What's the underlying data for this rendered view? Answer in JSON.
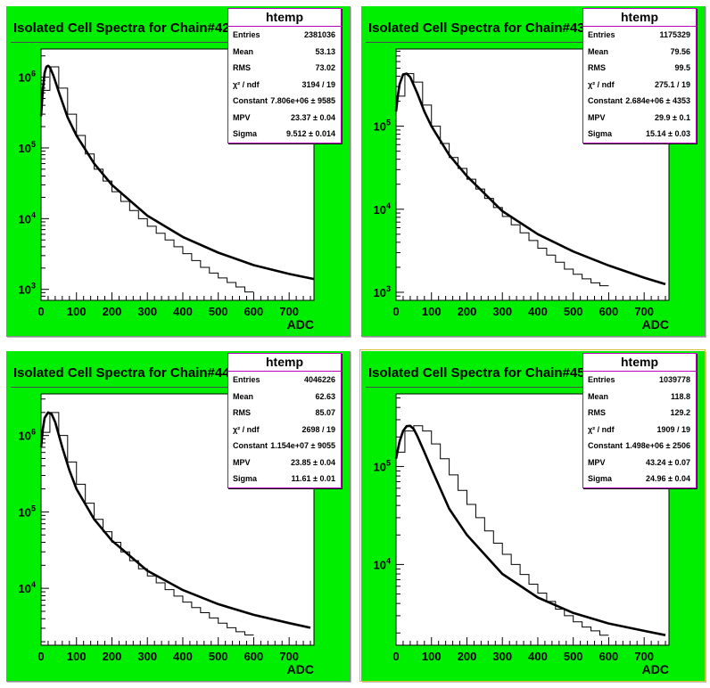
{
  "colors": {
    "pad_fill": "#00ee00",
    "frame_fill": "#ffffff",
    "line": "#000000",
    "stats_border": "#c000c0"
  },
  "panels": [
    {
      "title": "Isolated Cell Spectra for Chain#42",
      "stats": {
        "name": "htemp",
        "rows": [
          {
            "label": "Entries",
            "value": "2381036"
          },
          {
            "label": "Mean",
            "value": "53.13"
          },
          {
            "label": "RMS",
            "value": "73.02"
          },
          {
            "label": "χ² / ndf",
            "value": "3194 / 19"
          },
          {
            "label": "Constant",
            "value": "7.806e+06 ± 9585"
          },
          {
            "label": "MPV",
            "value": "23.37 ± 0.04"
          },
          {
            "label": "Sigma",
            "value": "9.512 ± 0.014"
          }
        ]
      }
    },
    {
      "title": "Isolated Cell Spectra for Chain#43",
      "stats": {
        "name": "htemp",
        "rows": [
          {
            "label": "Entries",
            "value": "1175329"
          },
          {
            "label": "Mean",
            "value": "79.56"
          },
          {
            "label": "RMS",
            "value": "99.5"
          },
          {
            "label": "χ² / ndf",
            "value": "275.1 / 19"
          },
          {
            "label": "Constant",
            "value": "2.684e+06 ± 4353"
          },
          {
            "label": "MPV",
            "value": "29.9 ± 0.1"
          },
          {
            "label": "Sigma",
            "value": "15.14 ± 0.03"
          }
        ]
      }
    },
    {
      "title": "Isolated Cell Spectra for Chain#44",
      "stats": {
        "name": "htemp",
        "rows": [
          {
            "label": "Entries",
            "value": "4046226"
          },
          {
            "label": "Mean",
            "value": "62.63"
          },
          {
            "label": "RMS",
            "value": "85.07"
          },
          {
            "label": "χ² / ndf",
            "value": "2698 / 19"
          },
          {
            "label": "Constant",
            "value": "1.154e+07 ± 9055"
          },
          {
            "label": "MPV",
            "value": "23.85 ± 0.04"
          },
          {
            "label": "Sigma",
            "value": "11.61 ± 0.01"
          }
        ]
      }
    },
    {
      "title": "Isolated Cell Spectra for Chain#45",
      "stats": {
        "name": "htemp",
        "rows": [
          {
            "label": "Entries",
            "value": "1039778"
          },
          {
            "label": "Mean",
            "value": "118.8"
          },
          {
            "label": "RMS",
            "value": "129.2"
          },
          {
            "label": "χ² / ndf",
            "value": "1909 / 19"
          },
          {
            "label": "Constant",
            "value": "1.498e+06 ± 2506"
          },
          {
            "label": "MPV",
            "value": "43.24 ± 0.07"
          },
          {
            "label": "Sigma",
            "value": "24.96 ± 0.04"
          }
        ]
      }
    }
  ],
  "chart_data": [
    {
      "type": "bar",
      "title": "Isolated Cell Spectra for Chain#42",
      "xlabel": "ADC",
      "ylabel": "",
      "xlim": [
        0,
        770
      ],
      "ylim": [
        700,
        2500000
      ],
      "yscale": "log",
      "xticks": [
        "0",
        "100",
        "200",
        "300",
        "400",
        "500",
        "600",
        "700"
      ],
      "yticks": [
        "10^3",
        "10^4",
        "10^5",
        "10^6"
      ],
      "bin_width": 25,
      "series": [
        {
          "values": [
            650000,
            1400000,
            700000,
            300000,
            150000,
            82000,
            50000,
            34000,
            24000,
            17500,
            13000,
            10000,
            7800,
            6200,
            5000,
            4000,
            3200,
            2550,
            2050,
            1700,
            1450,
            1250,
            1080,
            920
          ]
        },
        {
          "fit_x": [
            0,
            5,
            10,
            15,
            20,
            25,
            35,
            50,
            75,
            100,
            150,
            200,
            300,
            400,
            500,
            600,
            700,
            770
          ],
          "fit_y": [
            280000,
            650000,
            1150000,
            1400000,
            1450000,
            1380000,
            1050000,
            620000,
            270000,
            150000,
            60000,
            30000,
            11000,
            5500,
            3300,
            2200,
            1650,
            1400
          ]
        }
      ]
    },
    {
      "type": "bar",
      "title": "Isolated Cell Spectra for Chain#43",
      "xlabel": "ADC",
      "ylabel": "",
      "xlim": [
        0,
        770
      ],
      "ylim": [
        800,
        850000
      ],
      "yscale": "log",
      "xticks": [
        "0",
        "100",
        "200",
        "300",
        "400",
        "500",
        "600",
        "700"
      ],
      "yticks": [
        "10^3",
        "10^4",
        "10^5"
      ],
      "bin_width": 25,
      "series": [
        {
          "values": [
            230000,
            430000,
            340000,
            180000,
            100000,
            62000,
            42000,
            31000,
            23000,
            17500,
            13500,
            10500,
            8200,
            6500,
            5200,
            4200,
            3400,
            2800,
            2300,
            1900,
            1650,
            1450,
            1300,
            1200
          ]
        },
        {
          "fit_x": [
            0,
            5,
            10,
            20,
            30,
            40,
            60,
            80,
            100,
            150,
            200,
            300,
            400,
            500,
            600,
            700,
            760
          ],
          "fit_y": [
            150000,
            230000,
            320000,
            420000,
            430000,
            390000,
            250000,
            150000,
            100000,
            45000,
            25000,
            9500,
            5000,
            3100,
            2100,
            1500,
            1250
          ]
        }
      ]
    },
    {
      "type": "bar",
      "title": "Isolated Cell Spectra for Chain#44",
      "xlabel": "ADC",
      "ylabel": "",
      "xlim": [
        0,
        770
      ],
      "ylim": [
        1800,
        3500000
      ],
      "yscale": "log",
      "xticks": [
        "0",
        "100",
        "200",
        "300",
        "400",
        "500",
        "600",
        "700"
      ],
      "yticks": [
        "10^4",
        "10^5",
        "10^6"
      ],
      "bin_width": 25,
      "series": [
        {
          "values": [
            1100000,
            2000000,
            1000000,
            450000,
            230000,
            130000,
            80000,
            55000,
            40000,
            30000,
            23000,
            18000,
            14500,
            11800,
            9600,
            7900,
            6600,
            5600,
            4800,
            4100,
            3500,
            3050,
            2700,
            2450
          ]
        },
        {
          "fit_x": [
            0,
            5,
            10,
            20,
            30,
            40,
            60,
            80,
            100,
            150,
            200,
            300,
            400,
            500,
            600,
            700,
            760
          ],
          "fit_y": [
            700000,
            1200000,
            1700000,
            2000000,
            1900000,
            1500000,
            700000,
            350000,
            200000,
            80000,
            42000,
            17000,
            9500,
            6200,
            4500,
            3500,
            3050
          ]
        }
      ]
    },
    {
      "type": "bar",
      "title": "Isolated Cell Spectra for Chain#45",
      "xlabel": "ADC",
      "ylabel": "",
      "xlim": [
        0,
        770
      ],
      "ylim": [
        1500,
        550000
      ],
      "yscale": "log",
      "xticks": [
        "0",
        "100",
        "200",
        "300",
        "400",
        "500",
        "600",
        "700"
      ],
      "yticks": [
        "10^4",
        "10^5"
      ],
      "bin_width": 25,
      "series": [
        {
          "values": [
            140000,
            230000,
            260000,
            230000,
            170000,
            120000,
            82000,
            57000,
            41000,
            30000,
            22000,
            16500,
            12700,
            10000,
            7900,
            6300,
            5100,
            4200,
            3500,
            3000,
            2600,
            2300,
            2100,
            1900
          ]
        },
        {
          "fit_x": [
            0,
            10,
            20,
            30,
            40,
            50,
            60,
            80,
            100,
            150,
            200,
            300,
            400,
            500,
            600,
            700,
            760
          ],
          "fit_y": [
            120000,
            180000,
            230000,
            258000,
            260000,
            240000,
            205000,
            140000,
            95000,
            37000,
            20000,
            8000,
            4600,
            3200,
            2500,
            2100,
            1900
          ]
        }
      ]
    }
  ]
}
